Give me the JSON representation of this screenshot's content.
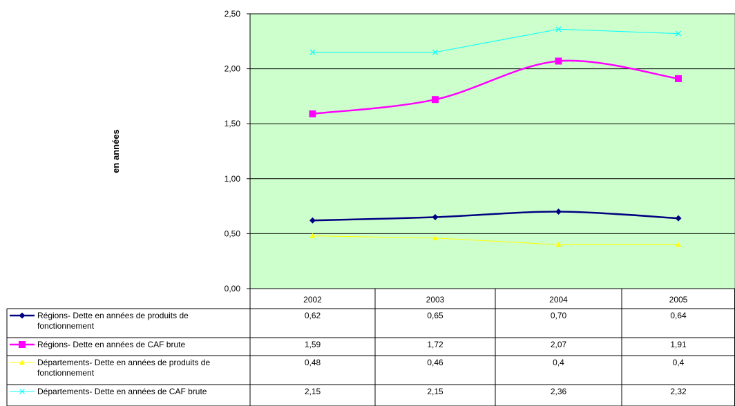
{
  "chart_data": {
    "type": "line",
    "ylabel": "en années",
    "ylim": [
      0,
      2.5
    ],
    "ytick_labels": [
      "0,00",
      "0,50",
      "1,00",
      "1,50",
      "2,00",
      "2,50"
    ],
    "categories": [
      "2002",
      "2003",
      "2004",
      "2005"
    ],
    "plot_bg": "#ccffcc",
    "grid": true,
    "series": [
      {
        "name": "Régions- Dette en années de produits de fonctionnement",
        "color": "#000080",
        "marker": "diamond",
        "values": [
          0.62,
          0.65,
          0.7,
          0.64
        ],
        "labels": [
          "0,62",
          "0,65",
          "0,70",
          "0,64"
        ]
      },
      {
        "name": "Régions- Dette en années de CAF brute",
        "color": "#ff00ff",
        "marker": "square",
        "values": [
          1.59,
          1.72,
          2.07,
          1.91
        ],
        "labels": [
          "1,59",
          "1,72",
          "2,07",
          "1,91"
        ]
      },
      {
        "name": "Départements- Dette en années de produits de fonctionnement",
        "color": "#ffff00",
        "marker": "triangle",
        "values": [
          0.48,
          0.46,
          0.4,
          0.4
        ],
        "labels": [
          "0,48",
          "0,46",
          "0,4",
          "0,4"
        ]
      },
      {
        "name": "Départements- Dette en années de CAF brute",
        "color": "#00ffff",
        "marker": "x",
        "values": [
          2.15,
          2.15,
          2.36,
          2.32
        ],
        "labels": [
          "2,15",
          "2,15",
          "2,36",
          "2,32"
        ]
      }
    ]
  }
}
